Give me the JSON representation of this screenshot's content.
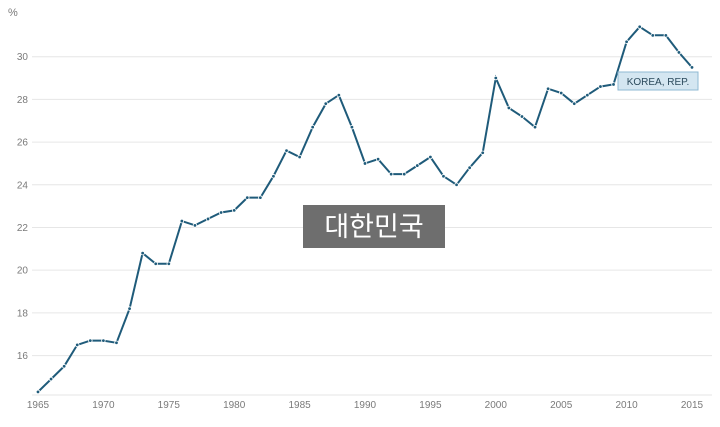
{
  "chart_data": {
    "type": "line",
    "y_unit": "%",
    "ylim": [
      14.2,
      32.0
    ],
    "xlim": [
      1965,
      2015
    ],
    "y_ticks": [
      "16",
      "18",
      "20",
      "22",
      "24",
      "26",
      "28",
      "30"
    ],
    "x_ticks": [
      "1965",
      "1970",
      "1975",
      "1980",
      "1985",
      "1990",
      "1995",
      "2000",
      "2005",
      "2010",
      "2015"
    ],
    "grid": true,
    "series": [
      {
        "name": "KOREA, REP.",
        "x": [
          1965,
          1966,
          1967,
          1968,
          1969,
          1970,
          1971,
          1972,
          1973,
          1974,
          1975,
          1976,
          1977,
          1978,
          1979,
          1980,
          1981,
          1982,
          1983,
          1984,
          1985,
          1986,
          1987,
          1988,
          1989,
          1990,
          1991,
          1992,
          1993,
          1994,
          1995,
          1996,
          1997,
          1998,
          1999,
          2000,
          2001,
          2002,
          2003,
          2004,
          2005,
          2006,
          2007,
          2008,
          2009,
          2010,
          2011,
          2012,
          2013,
          2014,
          2015
        ],
        "values": [
          14.3,
          14.9,
          15.5,
          16.5,
          16.7,
          16.7,
          16.6,
          18.2,
          20.8,
          20.3,
          20.3,
          22.3,
          22.1,
          22.4,
          22.7,
          22.8,
          23.4,
          23.4,
          24.4,
          25.6,
          25.3,
          26.7,
          27.8,
          28.2,
          26.7,
          25.0,
          25.2,
          24.5,
          24.5,
          24.9,
          25.3,
          24.4,
          24.0,
          24.8,
          25.5,
          29.0,
          27.6,
          27.2,
          26.7,
          28.5,
          28.3,
          27.8,
          28.2,
          28.6,
          28.7,
          30.7,
          31.4,
          31.0,
          31.0,
          30.2,
          29.5
        ]
      }
    ],
    "series_tag": "KOREA, REP.",
    "overlay_label": "대한민국",
    "colors": {
      "line": "#1f5b7a",
      "tag_bg": "#d4e6f1",
      "tag_border": "#8fb9d3",
      "overlay_bg": "#6e6e6e"
    }
  }
}
